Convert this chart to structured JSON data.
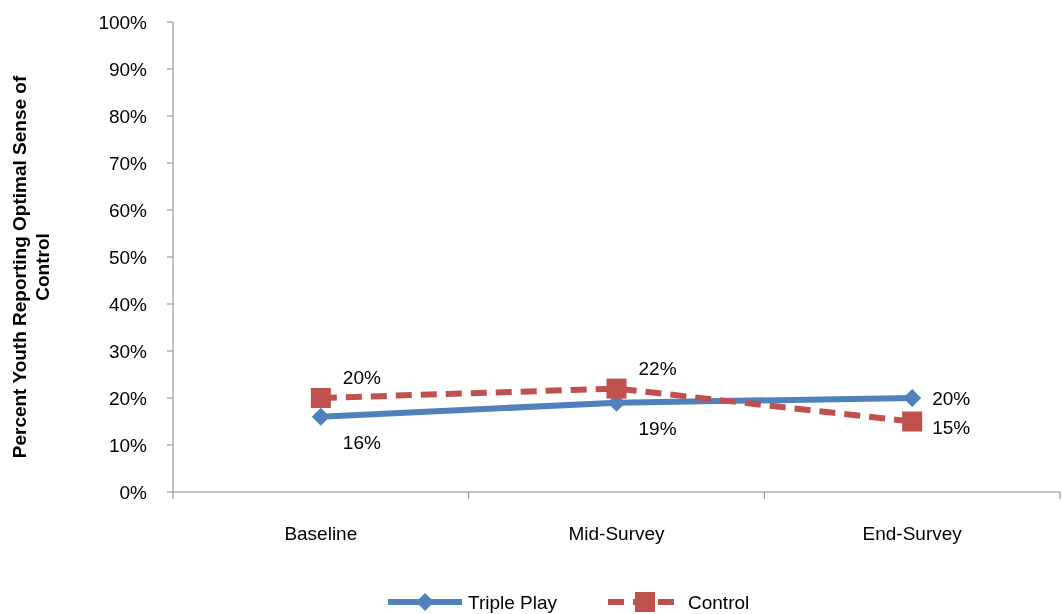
{
  "chart_data": {
    "type": "line",
    "ylabel": "Percent Youth Reporting Optimal Sense of Control",
    "categories": [
      "Baseline",
      "Mid-Survey",
      "End-Survey"
    ],
    "series": [
      {
        "name": "Triple Play",
        "color": "#4f81bd",
        "values": [
          16,
          19,
          20
        ],
        "value_labels": [
          "16%",
          "19%",
          "20%"
        ],
        "marker": "diamond",
        "line_style": "solid"
      },
      {
        "name": "Control",
        "color": "#c0504d",
        "values": [
          20,
          22,
          15
        ],
        "value_labels": [
          "20%",
          "22%",
          "15%"
        ],
        "marker": "square",
        "line_style": "dashed"
      }
    ],
    "ylim": [
      0,
      100
    ],
    "yticks": [
      {
        "value": 0,
        "label": "0%"
      },
      {
        "value": 10,
        "label": "10%"
      },
      {
        "value": 20,
        "label": "20%"
      },
      {
        "value": 30,
        "label": "30%"
      },
      {
        "value": 40,
        "label": "40%"
      },
      {
        "value": 50,
        "label": "50%"
      },
      {
        "value": 60,
        "label": "60%"
      },
      {
        "value": 70,
        "label": "70%"
      },
      {
        "value": 80,
        "label": "80%"
      },
      {
        "value": 90,
        "label": "90%"
      },
      {
        "value": 100,
        "label": "100%"
      }
    ],
    "grid": false,
    "legend": "bottom"
  }
}
